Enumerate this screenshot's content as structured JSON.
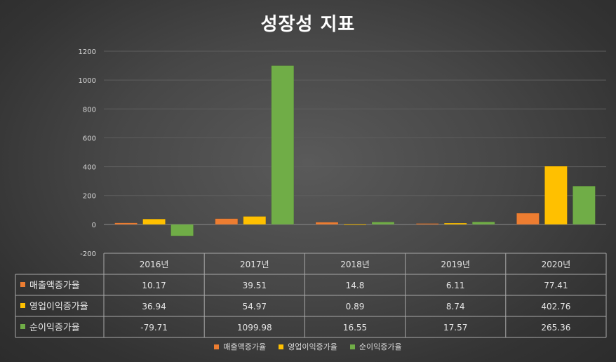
{
  "chart_data": {
    "type": "bar",
    "title": "성장성 지표",
    "categories": [
      "2016년",
      "2017년",
      "2018년",
      "2019년",
      "2020년"
    ],
    "series": [
      {
        "name": "매출액증가율",
        "color": "#ED7D31",
        "values": [
          10.17,
          39.51,
          14.8,
          6.11,
          77.41
        ],
        "labels": [
          "10.17",
          "39.51",
          "14.8",
          "6.11",
          "77.41"
        ]
      },
      {
        "name": "영업이익증가율",
        "color": "#FFC000",
        "values": [
          36.94,
          54.97,
          0.89,
          8.74,
          402.76
        ],
        "labels": [
          "36.94",
          "54.97",
          "0.89",
          "8.74",
          "402.76"
        ]
      },
      {
        "name": "순이익증가율",
        "color": "#70AD47",
        "values": [
          -79.71,
          1099.98,
          16.55,
          17.57,
          265.36
        ],
        "labels": [
          "-79.71",
          "1099.98",
          "16.55",
          "17.57",
          "265.36"
        ]
      }
    ],
    "ylim": [
      -200,
      1200
    ],
    "yticks": [
      "-200",
      "0",
      "200",
      "400",
      "600",
      "800",
      "1000",
      "1200"
    ],
    "grid": true,
    "data_table": true,
    "legend_position": "bottom"
  }
}
